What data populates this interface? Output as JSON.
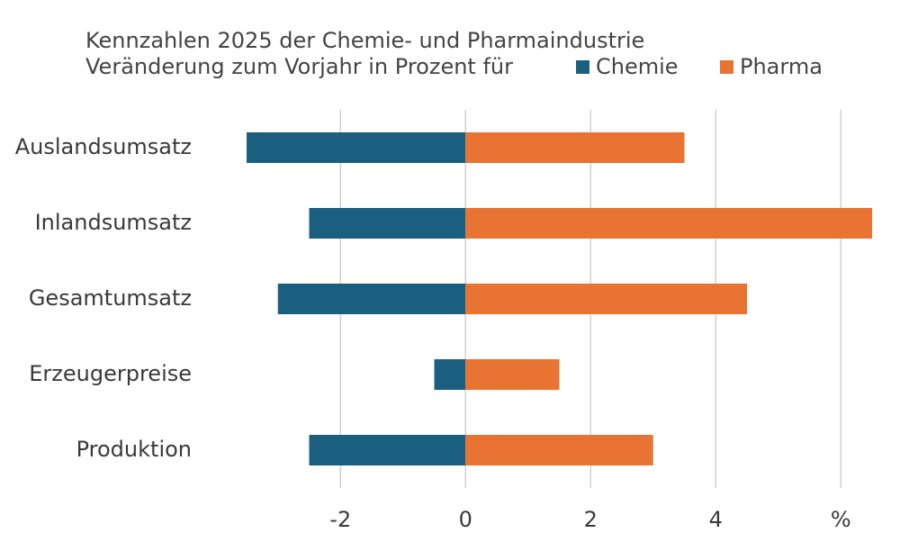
{
  "chart_data": {
    "type": "bar",
    "orientation": "horizontal",
    "title": "Kennzahlen 2025 der Chemie- und Pharmaindustrie",
    "subtitle": "Veränderung zum Vorjahr in Prozent für",
    "categories": [
      "Auslandsumsatz",
      "Inlandsumsatz",
      "Gesamtumsatz",
      "Erzeugerpreise",
      "Produktion"
    ],
    "series": [
      {
        "name": "Chemie",
        "color": "#1b5f80",
        "values": [
          -3.5,
          -2.5,
          -3.0,
          -0.5,
          -2.5
        ]
      },
      {
        "name": "Pharma",
        "color": "#e97332",
        "values": [
          3.5,
          6.5,
          4.5,
          1.5,
          3.0
        ]
      }
    ],
    "xlim": [
      -3.5,
      6.5
    ],
    "xticks": [
      -2,
      0,
      2,
      4,
      {
        "value": 6,
        "label": "%"
      }
    ],
    "grid": true
  }
}
